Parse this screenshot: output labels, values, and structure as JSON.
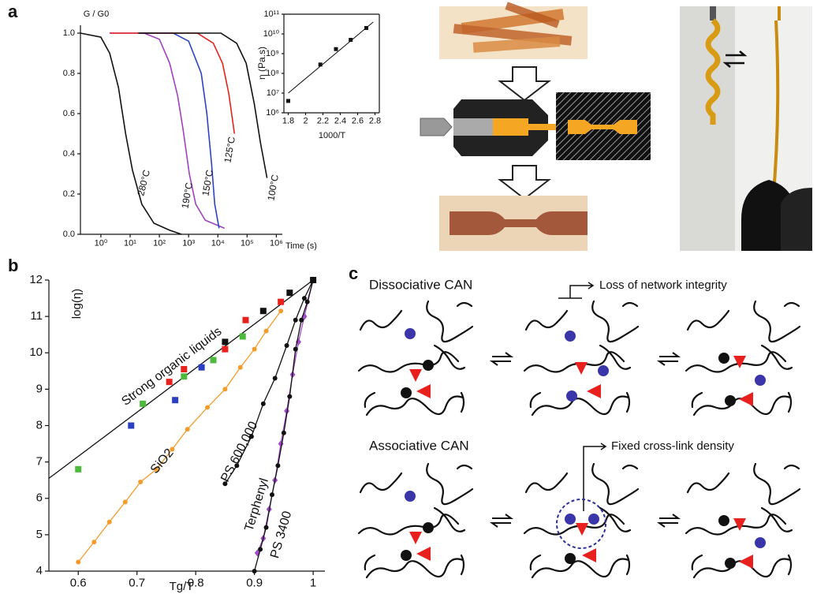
{
  "panel_labels": [
    "a",
    "b",
    "c"
  ],
  "chart_data": [
    {
      "type": "line",
      "ylabel": "G / G0",
      "xlabel": "Time (s)",
      "xlog": true,
      "xlim": [
        0.2,
        1600000
      ],
      "ylim": [
        0,
        1
      ],
      "xticks": [
        {
          "value": 1,
          "label": "10⁰"
        },
        {
          "value": 10,
          "label": "10¹"
        },
        {
          "value": 100,
          "label": "10²"
        },
        {
          "value": 1000,
          "label": "10³"
        },
        {
          "value": 10000,
          "label": "10⁴"
        },
        {
          "value": 100000,
          "label": "10⁵"
        },
        {
          "value": 1000000,
          "label": "10⁶"
        }
      ],
      "yticks": [
        {
          "value": 0,
          "label": "0.0"
        },
        0.2,
        0.4,
        0.6,
        0.8,
        {
          "value": 1,
          "label": "1.0"
        }
      ],
      "series": [
        {
          "name": "280°C",
          "color": "#111111",
          "x": [
            0.2,
            1,
            2,
            4,
            7,
            12,
            25,
            65,
            225,
            570
          ],
          "values": [
            1,
            0.98,
            0.9,
            0.73,
            0.5,
            0.32,
            0.15,
            0.055,
            0.02,
            0
          ]
        },
        {
          "name": "190°C",
          "color": "#a040c0",
          "x": [
            2,
            30,
            100,
            225,
            420,
            650,
            1060,
            1750,
            3700,
            17000
          ],
          "values": [
            1,
            1,
            0.97,
            0.85,
            0.69,
            0.52,
            0.3,
            0.15,
            0.07,
            0.03
          ]
        },
        {
          "name": "150°C",
          "color": "#2a44c4",
          "x": [
            19,
            300,
            1000,
            2700,
            4200,
            6100,
            7800,
            11000
          ],
          "values": [
            1,
            1,
            0.96,
            0.8,
            0.6,
            0.35,
            0.15,
            0.03
          ]
        },
        {
          "name": "125°C",
          "color": "#e2231e",
          "x": [
            2,
            2000,
            7000,
            14500,
            23600,
            37000
          ],
          "values": [
            1,
            1,
            0.95,
            0.85,
            0.7,
            0.5
          ]
        },
        {
          "name": "100°C",
          "color": "#111111",
          "x": [
            19,
            12700,
            44000,
            93000,
            175000,
            290000,
            480000
          ],
          "values": [
            1,
            1,
            0.95,
            0.85,
            0.65,
            0.45,
            0.28
          ]
        }
      ]
    },
    {
      "type": "scatter",
      "ylabel": "η (Pa.s)",
      "xlabel": "1000/T",
      "ylog": true,
      "xlim": [
        1.75,
        2.85
      ],
      "ylim": [
        1000000,
        100000000000
      ],
      "xticks": [
        1.8,
        2,
        2.2,
        2.4,
        2.6,
        2.8
      ],
      "yticks": [
        {
          "value": 1000000,
          "label": "10⁶"
        },
        {
          "value": 10000000,
          "label": "10⁷"
        },
        {
          "value": 100000000,
          "label": "10⁸"
        },
        {
          "value": 1000000000,
          "label": "10⁹"
        },
        {
          "value": 10000000000,
          "label": "10¹⁰"
        },
        {
          "value": 100000000000,
          "label": "10¹¹"
        }
      ],
      "series": [
        {
          "color": "#111111",
          "marker": "square",
          "x": [
            1.8,
            2.17,
            2.35,
            2.52,
            2.7
          ],
          "values": [
            4000000,
            280000000,
            1700000000,
            5000000000,
            20000000000
          ]
        },
        {
          "color": "#111111",
          "line": true,
          "x": [
            1.8,
            2.78
          ],
          "values": [
            10000000,
            40000000000
          ]
        }
      ]
    },
    {
      "type": "scatter",
      "ylabel": "log(η)",
      "xlabel": "Tg/T",
      "xlim": [
        0.55,
        1.02
      ],
      "ylim": [
        4,
        12
      ],
      "xticks": [
        0.6,
        0.7,
        0.8,
        0.9,
        1
      ],
      "yticks": [
        4,
        5,
        6,
        7,
        8,
        9,
        10,
        11,
        12
      ],
      "series": [
        {
          "name": "Strong organic liquids",
          "color": "#111111",
          "line": true,
          "x": [
            0.55,
            1
          ],
          "values": [
            6.55,
            12
          ]
        },
        {
          "name": "SiO2",
          "color": "#f39c2c",
          "line": true,
          "marker": "circle",
          "x": [
            0.6,
            0.627,
            0.653,
            0.68,
            0.706,
            0.733,
            0.76,
            0.786,
            0.82,
            0.85,
            0.876,
            0.9,
            0.92,
            0.945
          ],
          "values": [
            4.25,
            4.8,
            5.35,
            5.9,
            6.45,
            6.8,
            7.35,
            7.9,
            8.5,
            9.0,
            9.6,
            10.1,
            10.6,
            11.15
          ]
        },
        {
          "name": "PS 600,000",
          "color": "#111111",
          "line": true,
          "marker": "circle",
          "x": [
            0.85,
            0.87,
            0.895,
            0.915,
            0.935,
            0.955,
            0.97,
            0.985,
            1
          ],
          "values": [
            6.4,
            6.9,
            7.7,
            8.6,
            9.3,
            10.2,
            10.9,
            11.5,
            12
          ]
        },
        {
          "name": "Terphenyl",
          "color": "#a24bc8",
          "line": true,
          "marker": "diamond",
          "x": [
            0.905,
            0.915,
            0.925,
            0.935,
            0.945,
            0.955,
            0.965,
            0.975,
            0.985,
            1
          ],
          "values": [
            4.5,
            4.9,
            5.7,
            6.5,
            7.5,
            8.4,
            9.4,
            10.3,
            11.0,
            12
          ]
        },
        {
          "name": "PS 3400",
          "color": "#111111",
          "line": true,
          "marker": "circle",
          "x": [
            0.9,
            0.91,
            0.92,
            0.93,
            0.94,
            0.95,
            0.96,
            0.97,
            0.98,
            0.99,
            1
          ],
          "values": [
            4.0,
            4.6,
            5.2,
            6.1,
            6.9,
            7.8,
            8.8,
            10.1,
            10.9,
            11.4,
            12
          ]
        },
        {
          "color": "#4cbb3c",
          "marker": "square",
          "x": [
            0.6,
            0.71,
            0.78,
            0.83,
            0.88
          ],
          "values": [
            6.8,
            8.6,
            9.35,
            9.8,
            10.45
          ]
        },
        {
          "color": "#2b3fc2",
          "marker": "square",
          "x": [
            0.69,
            0.765,
            0.81
          ],
          "values": [
            8.0,
            8.7,
            9.6
          ]
        },
        {
          "color": "#e8201e",
          "marker": "square",
          "x": [
            0.755,
            0.78,
            0.85,
            0.885,
            0.945
          ],
          "values": [
            9.2,
            9.55,
            10.1,
            10.9,
            11.4
          ]
        },
        {
          "color": "#111111",
          "marker": "square",
          "x": [
            0.85,
            0.915,
            0.96,
            1
          ],
          "values": [
            10.3,
            11.15,
            11.65,
            12
          ]
        }
      ]
    }
  ],
  "panel_c": {
    "rows": [
      {
        "title": "Dissociative CAN",
        "note": "Loss of network integrity"
      },
      {
        "title": "Associative CAN",
        "note": "Fixed cross-link density"
      }
    ]
  }
}
